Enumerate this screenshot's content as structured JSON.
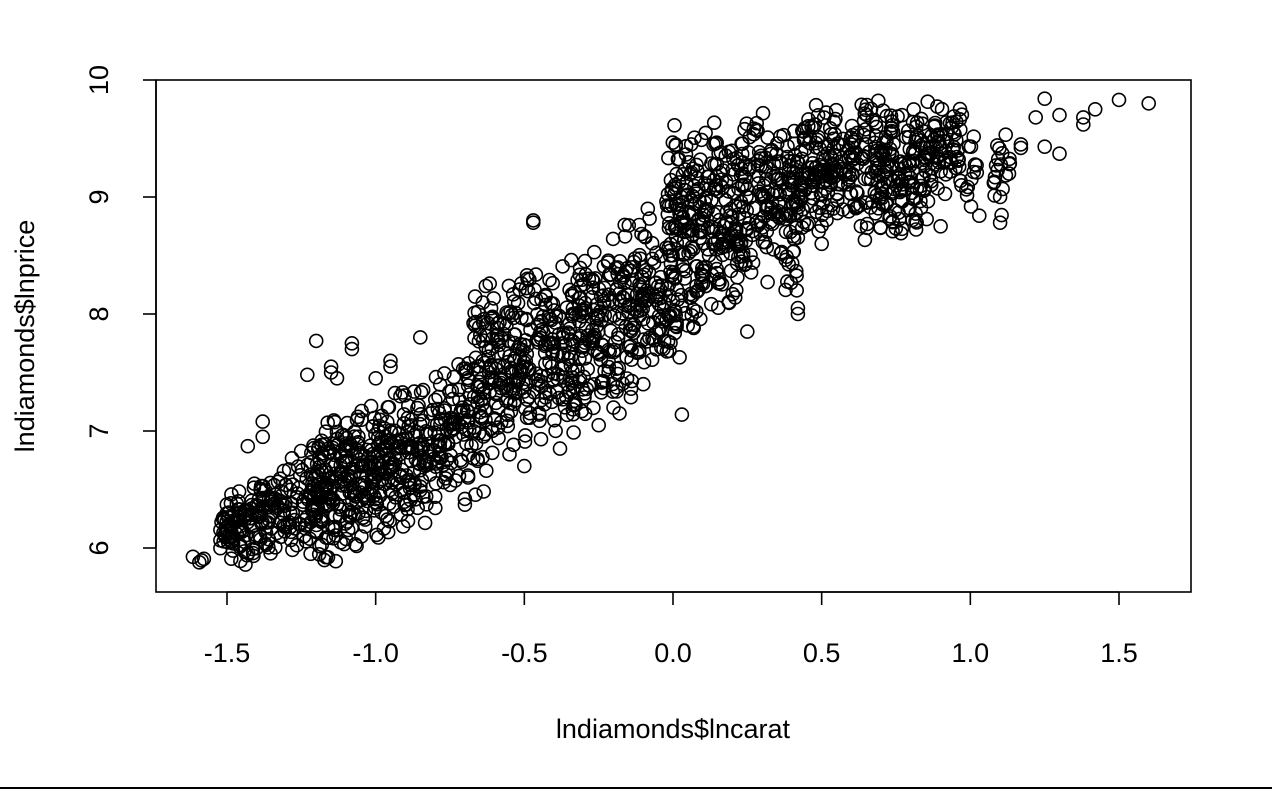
{
  "chart_data": {
    "type": "scatter",
    "title": "",
    "xlabel": "lndiamonds$lncarat",
    "ylabel": "lndiamonds$lnprice",
    "xlim": [
      -1.75,
      1.72
    ],
    "ylim": [
      5.65,
      10.0
    ],
    "x_ticks": [
      -1.5,
      -1.0,
      -0.5,
      0.0,
      0.5,
      1.0,
      1.5
    ],
    "x_tick_labels": [
      "-1.5",
      "-1.0",
      "-0.5",
      "0.0",
      "0.5",
      "1.0",
      "1.5"
    ],
    "y_ticks": [
      6,
      7,
      8,
      9,
      10
    ],
    "y_tick_labels": [
      "6",
      "7",
      "8",
      "9",
      "10"
    ],
    "grid": false,
    "legend": "none",
    "marker": "open-circle",
    "color": "#000000",
    "clusters": [
      {
        "x": -1.6,
        "y_min": 5.82,
        "y_max": 5.95,
        "n": 4
      },
      {
        "x": -1.5,
        "y_min": 5.78,
        "y_max": 6.55,
        "n": 40
      },
      {
        "x": -1.45,
        "y_min": 5.8,
        "y_max": 6.6,
        "n": 35
      },
      {
        "x": -1.4,
        "y_min": 5.85,
        "y_max": 6.7,
        "n": 35
      },
      {
        "x": -1.35,
        "y_min": 5.9,
        "y_max": 6.75,
        "n": 30
      },
      {
        "x": -1.3,
        "y_min": 5.9,
        "y_max": 6.8,
        "n": 30
      },
      {
        "x": -1.25,
        "y_min": 5.85,
        "y_max": 6.85,
        "n": 25
      },
      {
        "x": -1.2,
        "y_min": 5.82,
        "y_max": 7.1,
        "n": 60
      },
      {
        "x": -1.15,
        "y_min": 5.85,
        "y_max": 7.2,
        "n": 55
      },
      {
        "x": -1.1,
        "y_min": 5.9,
        "y_max": 7.25,
        "n": 55
      },
      {
        "x": -1.05,
        "y_min": 5.95,
        "y_max": 7.3,
        "n": 50
      },
      {
        "x": -1.0,
        "y_min": 6.0,
        "y_max": 7.35,
        "n": 50
      },
      {
        "x": -0.95,
        "y_min": 6.05,
        "y_max": 7.4,
        "n": 50
      },
      {
        "x": -0.9,
        "y_min": 6.1,
        "y_max": 7.45,
        "n": 45
      },
      {
        "x": -0.85,
        "y_min": 6.15,
        "y_max": 7.5,
        "n": 40
      },
      {
        "x": -0.8,
        "y_min": 6.3,
        "y_max": 7.55,
        "n": 35
      },
      {
        "x": -0.75,
        "y_min": 6.4,
        "y_max": 7.6,
        "n": 35
      },
      {
        "x": -0.7,
        "y_min": 6.5,
        "y_max": 7.7,
        "n": 35
      },
      {
        "x": -0.65,
        "y_min": 6.4,
        "y_max": 8.4,
        "n": 55
      },
      {
        "x": -0.6,
        "y_min": 6.6,
        "y_max": 8.3,
        "n": 50
      },
      {
        "x": -0.55,
        "y_min": 6.7,
        "y_max": 8.35,
        "n": 45
      },
      {
        "x": -0.5,
        "y_min": 6.75,
        "y_max": 8.4,
        "n": 45
      },
      {
        "x": -0.45,
        "y_min": 6.85,
        "y_max": 8.45,
        "n": 40
      },
      {
        "x": -0.4,
        "y_min": 6.9,
        "y_max": 8.5,
        "n": 35
      },
      {
        "x": -0.35,
        "y_min": 6.85,
        "y_max": 8.6,
        "n": 50
      },
      {
        "x": -0.3,
        "y_min": 7.0,
        "y_max": 8.6,
        "n": 45
      },
      {
        "x": -0.25,
        "y_min": 7.1,
        "y_max": 8.65,
        "n": 45
      },
      {
        "x": -0.2,
        "y_min": 7.15,
        "y_max": 8.75,
        "n": 40
      },
      {
        "x": -0.15,
        "y_min": 7.2,
        "y_max": 8.85,
        "n": 40
      },
      {
        "x": -0.1,
        "y_min": 7.35,
        "y_max": 9.0,
        "n": 45
      },
      {
        "x": -0.05,
        "y_min": 7.4,
        "y_max": 8.9,
        "n": 35
      },
      {
        "x": 0.0,
        "y_min": 7.5,
        "y_max": 9.7,
        "n": 70
      },
      {
        "x": 0.05,
        "y_min": 7.7,
        "y_max": 9.75,
        "n": 60
      },
      {
        "x": 0.1,
        "y_min": 7.8,
        "y_max": 9.75,
        "n": 55
      },
      {
        "x": 0.15,
        "y_min": 7.9,
        "y_max": 9.75,
        "n": 50
      },
      {
        "x": 0.2,
        "y_min": 7.9,
        "y_max": 9.8,
        "n": 50
      },
      {
        "x": 0.25,
        "y_min": 8.0,
        "y_max": 9.8,
        "n": 45
      },
      {
        "x": 0.3,
        "y_min": 8.2,
        "y_max": 9.8,
        "n": 40
      },
      {
        "x": 0.35,
        "y_min": 8.3,
        "y_max": 9.8,
        "n": 35
      },
      {
        "x": 0.4,
        "y_min": 8.0,
        "y_max": 9.85,
        "n": 55
      },
      {
        "x": 0.45,
        "y_min": 8.5,
        "y_max": 9.85,
        "n": 45
      },
      {
        "x": 0.5,
        "y_min": 8.6,
        "y_max": 9.85,
        "n": 45
      },
      {
        "x": 0.55,
        "y_min": 8.7,
        "y_max": 9.85,
        "n": 40
      },
      {
        "x": 0.6,
        "y_min": 8.75,
        "y_max": 9.85,
        "n": 35
      },
      {
        "x": 0.65,
        "y_min": 8.55,
        "y_max": 9.85,
        "n": 30
      },
      {
        "x": 0.7,
        "y_min": 8.55,
        "y_max": 9.85,
        "n": 50
      },
      {
        "x": 0.75,
        "y_min": 8.6,
        "y_max": 9.85,
        "n": 45
      },
      {
        "x": 0.8,
        "y_min": 8.65,
        "y_max": 9.85,
        "n": 40
      },
      {
        "x": 0.85,
        "y_min": 8.8,
        "y_max": 9.85,
        "n": 35
      },
      {
        "x": 0.9,
        "y_min": 8.9,
        "y_max": 9.85,
        "n": 30
      },
      {
        "x": 0.95,
        "y_min": 9.0,
        "y_max": 9.85,
        "n": 25
      },
      {
        "x": 1.0,
        "y_min": 8.85,
        "y_max": 9.8,
        "n": 12
      },
      {
        "x": 1.1,
        "y_min": 8.8,
        "y_max": 9.85,
        "n": 15
      },
      {
        "x": 1.15,
        "y_min": 9.2,
        "y_max": 9.45,
        "n": 3
      }
    ],
    "outliers": [
      [
        -1.43,
        6.87
      ],
      [
        -1.38,
        6.95
      ],
      [
        -1.38,
        7.08
      ],
      [
        -1.23,
        7.48
      ],
      [
        -1.2,
        7.77
      ],
      [
        -1.15,
        7.5
      ],
      [
        -1.15,
        7.55
      ],
      [
        -1.13,
        7.45
      ],
      [
        -1.08,
        7.7
      ],
      [
        -1.08,
        7.75
      ],
      [
        -1.0,
        7.45
      ],
      [
        -0.95,
        7.55
      ],
      [
        -0.95,
        7.6
      ],
      [
        -0.85,
        7.8
      ],
      [
        -0.47,
        8.8
      ],
      [
        -0.47,
        8.78
      ],
      [
        -0.5,
        6.7
      ],
      [
        -0.55,
        6.8
      ],
      [
        -0.7,
        6.37
      ],
      [
        -0.7,
        6.42
      ],
      [
        -0.18,
        7.15
      ],
      [
        -0.2,
        7.2
      ],
      [
        -0.25,
        7.05
      ],
      [
        -0.38,
        6.85
      ],
      [
        0.03,
        7.14
      ],
      [
        -0.1,
        7.4
      ],
      [
        0.42,
        8.0
      ],
      [
        0.42,
        8.05
      ],
      [
        0.25,
        7.85
      ],
      [
        0.5,
        8.6
      ],
      [
        1.03,
        8.84
      ],
      [
        1.1,
        8.78
      ],
      [
        1.1,
        9.0
      ],
      [
        1.13,
        9.2
      ],
      [
        1.17,
        9.42
      ],
      [
        1.17,
        9.45
      ],
      [
        1.22,
        9.68
      ],
      [
        1.25,
        9.84
      ],
      [
        1.25,
        9.43
      ],
      [
        1.3,
        9.7
      ],
      [
        1.3,
        9.37
      ],
      [
        1.38,
        9.62
      ],
      [
        1.38,
        9.68
      ],
      [
        1.42,
        9.75
      ],
      [
        1.5,
        9.83
      ],
      [
        1.6,
        9.8
      ],
      [
        0.9,
        8.75
      ],
      [
        0.97,
        9.1
      ],
      [
        0.95,
        9.25
      ]
    ]
  }
}
